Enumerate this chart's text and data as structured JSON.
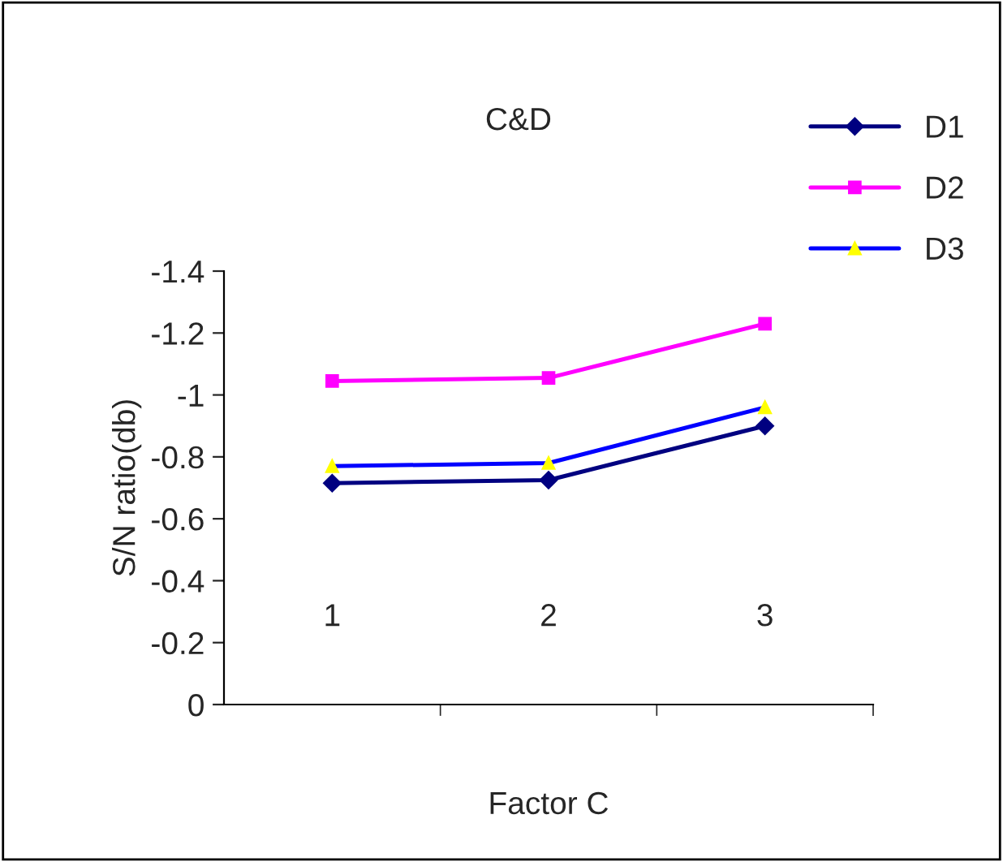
{
  "chart_data": {
    "type": "line",
    "title": "C&D",
    "xlabel": "Factor C",
    "ylabel": "S/N ratio(db)",
    "categories": [
      "1",
      "2",
      "3"
    ],
    "series": [
      {
        "name": "D1",
        "color": "#000080",
        "marker": "diamond",
        "values": [
          -0.715,
          -0.725,
          -0.9
        ]
      },
      {
        "name": "D2",
        "color": "#ff00ff",
        "marker": "square",
        "values": [
          -1.045,
          -1.055,
          -1.23
        ]
      },
      {
        "name": "D3",
        "color": "#0000ff",
        "colors": [
          "#ffff00",
          "#ffff00",
          "#ffff00"
        ],
        "marker": "triangle",
        "values": [
          -0.77,
          -0.78,
          -0.96
        ]
      }
    ],
    "ylim": [
      0,
      -1.4
    ],
    "yticks": [
      -1.4,
      -1.2,
      -1,
      -0.8,
      -0.6,
      -0.4,
      -0.2,
      0
    ],
    "grid": false,
    "legend": "top right",
    "line_style": "solid"
  }
}
